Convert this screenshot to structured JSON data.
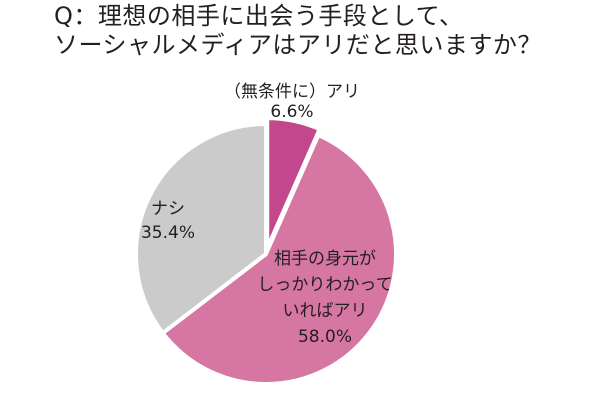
{
  "chart_data": {
    "type": "pie",
    "title_lines": [
      "Q：理想の相手に出会う手段として、",
      "ソーシャルメディアはアリだと思いますか？"
    ],
    "start_angle_deg": 0,
    "direction": "clockwise",
    "slices": [
      {
        "label_lines": [
          "（無条件に）アリ"
        ],
        "value": 6.6,
        "value_label": "6.6%",
        "color": "#c2478d"
      },
      {
        "label_lines": [
          "相手の身元が",
          "しっかりわかって",
          "いればアリ"
        ],
        "value": 58.0,
        "value_label": "58.0%",
        "color": "#d676a2"
      },
      {
        "label_lines": [
          "ナシ"
        ],
        "value": 35.4,
        "value_label": "35.4%",
        "color": "#cbcbcb"
      }
    ]
  }
}
